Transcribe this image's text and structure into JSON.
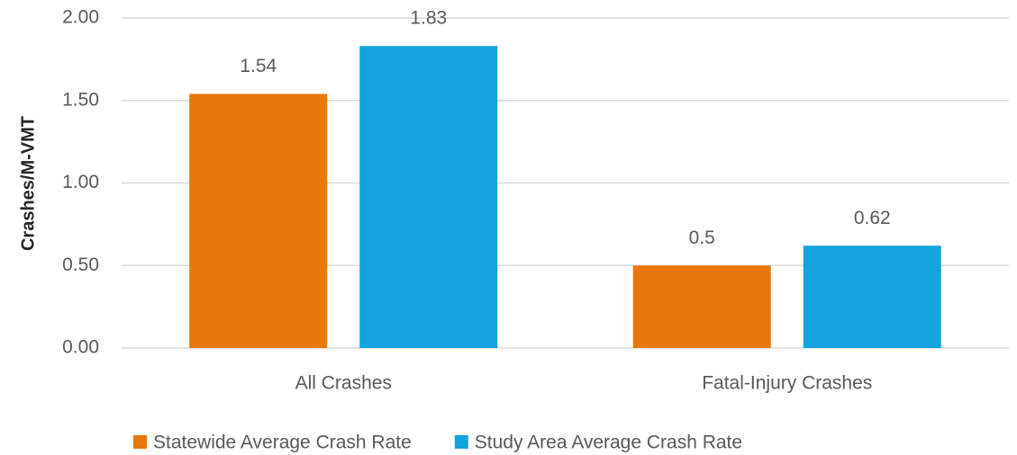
{
  "chart_data": {
    "type": "bar",
    "y_label": "Crashes/M-VMT",
    "categories": [
      "All Crashes",
      "Fatal-Injury Crashes"
    ],
    "series": [
      {
        "name": "Statewide Average Crash Rate",
        "color": "#e8770b",
        "values": [
          1.54,
          0.5
        ]
      },
      {
        "name": "Study Area Average Crash Rate",
        "color": "#13a3de",
        "values": [
          1.83,
          0.62
        ]
      }
    ],
    "ylim": [
      0,
      2
    ],
    "yticks": [
      {
        "value": 0,
        "label": "0.00"
      },
      {
        "value": 0.5,
        "label": "0.50"
      },
      {
        "value": 1,
        "label": "1.00"
      },
      {
        "value": 1.5,
        "label": "1.50"
      },
      {
        "value": 2,
        "label": "2.00"
      }
    ],
    "grid": true,
    "legend": "bottom"
  }
}
